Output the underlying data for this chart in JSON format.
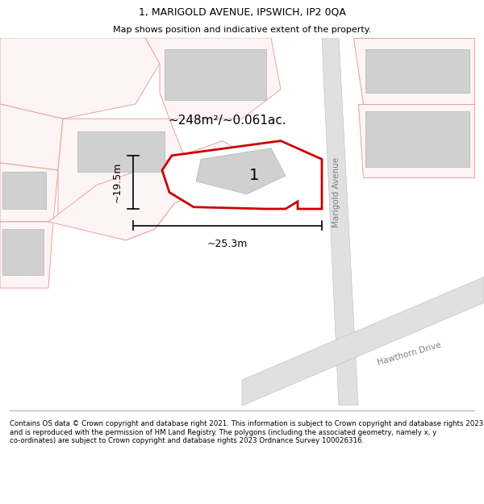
{
  "title": "1, MARIGOLD AVENUE, IPSWICH, IP2 0QA",
  "subtitle": "Map shows position and indicative extent of the property.",
  "footer": "Contains OS data © Crown copyright and database right 2021. This information is subject to Crown copyright and database rights 2023 and is reproduced with the permission of HM Land Registry. The polygons (including the associated geometry, namely x, y co-ordinates) are subject to Crown copyright and database rights 2023 Ordnance Survey 100026316.",
  "area_label": "~248m²/~0.061ac.",
  "number_label": "1",
  "width_label": "~25.3m",
  "height_label": "~19.5m",
  "road_label_1": "Marigold Avenue",
  "road_label_2": "Hawthorn Drive",
  "bg_color": "#ffffff",
  "plot_color_red": "#cc0000",
  "building_fill": "#d0d0d0",
  "outline_pink": "#e8a0a0",
  "pink_fill": "#fdf5f5",
  "road_fill": "#e0e0e0",
  "figsize": [
    6.0,
    6.25
  ],
  "dpi": 100,
  "title_fontsize": 9,
  "subtitle_fontsize": 8,
  "footer_fontsize": 6.2,
  "map_xlim": [
    0,
    1
  ],
  "map_ylim": [
    0,
    1
  ]
}
